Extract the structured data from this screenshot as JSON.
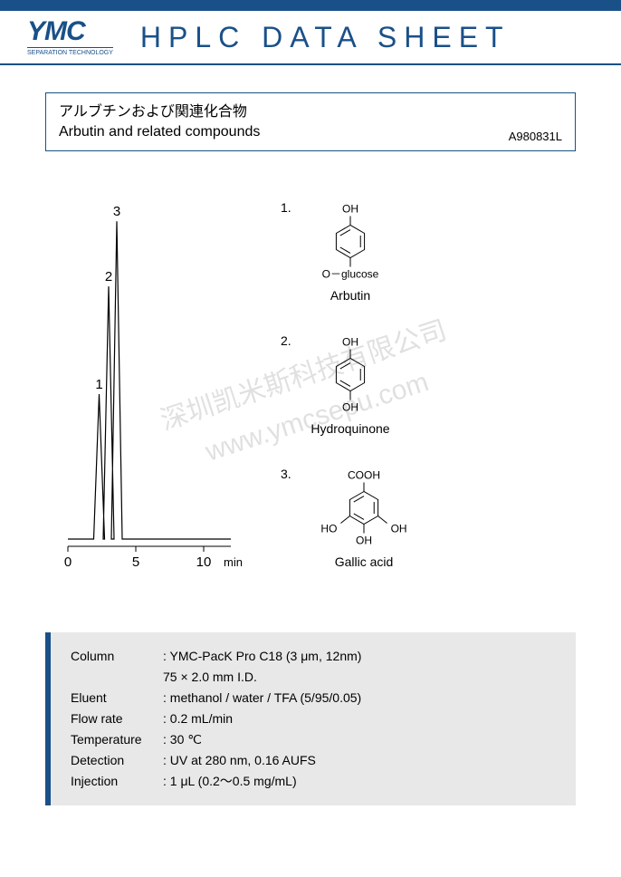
{
  "header": {
    "logo_text": "YMC",
    "logo_sub": "SEPARATION TECHNOLOGY",
    "title": "HPLC DATA SHEET"
  },
  "titlebox": {
    "jp": "アルブチンおよび関連化合物",
    "en": "Arbutin and related compounds",
    "code": "A980831L"
  },
  "chromatogram": {
    "peaks": [
      {
        "label": "1",
        "rt": 2.3,
        "height": 0.45
      },
      {
        "label": "2",
        "rt": 3.0,
        "height": 0.78
      },
      {
        "label": "3",
        "rt": 3.6,
        "height": 0.98
      }
    ],
    "x_ticks": [
      "0",
      "5",
      "10"
    ],
    "x_unit": "min",
    "x_max": 12,
    "line_color": "#000000"
  },
  "compounds": [
    {
      "num": "1.",
      "name": "Arbutin",
      "top_label": "OH",
      "bottom_label": "O－glucose",
      "extra": null
    },
    {
      "num": "2.",
      "name": "Hydroquinone",
      "top_label": "OH",
      "bottom_label": "OH",
      "extra": null
    },
    {
      "num": "3.",
      "name": "Gallic acid",
      "top_label": "COOH",
      "bottom_label": "OH",
      "extra": {
        "left": "HO",
        "right": "OH"
      }
    }
  ],
  "watermark": {
    "line1": "深圳凯米斯科技有限公司",
    "line2": "www.ymcsepu.com"
  },
  "params": {
    "rows": [
      {
        "k": "Column",
        "v": ": YMC-PacK Pro C18  (3 μm, 12nm)",
        "v2": "  75 × 2.0 mm I.D."
      },
      {
        "k": "Eluent",
        "v": ": methanol / water / TFA (5/95/0.05)"
      },
      {
        "k": "Flow rate",
        "v": ": 0.2 mL/min"
      },
      {
        "k": "Temperature",
        "v": ": 30 ℃"
      },
      {
        "k": "Detection",
        "v": ": UV at 280 nm, 0.16 AUFS"
      },
      {
        "k": "Injection",
        "v": ": 1  μL  (0.2～0.5 mg/mL)"
      }
    ]
  },
  "colors": {
    "brand": "#1a5088",
    "param_bg": "#e8e8e8"
  }
}
